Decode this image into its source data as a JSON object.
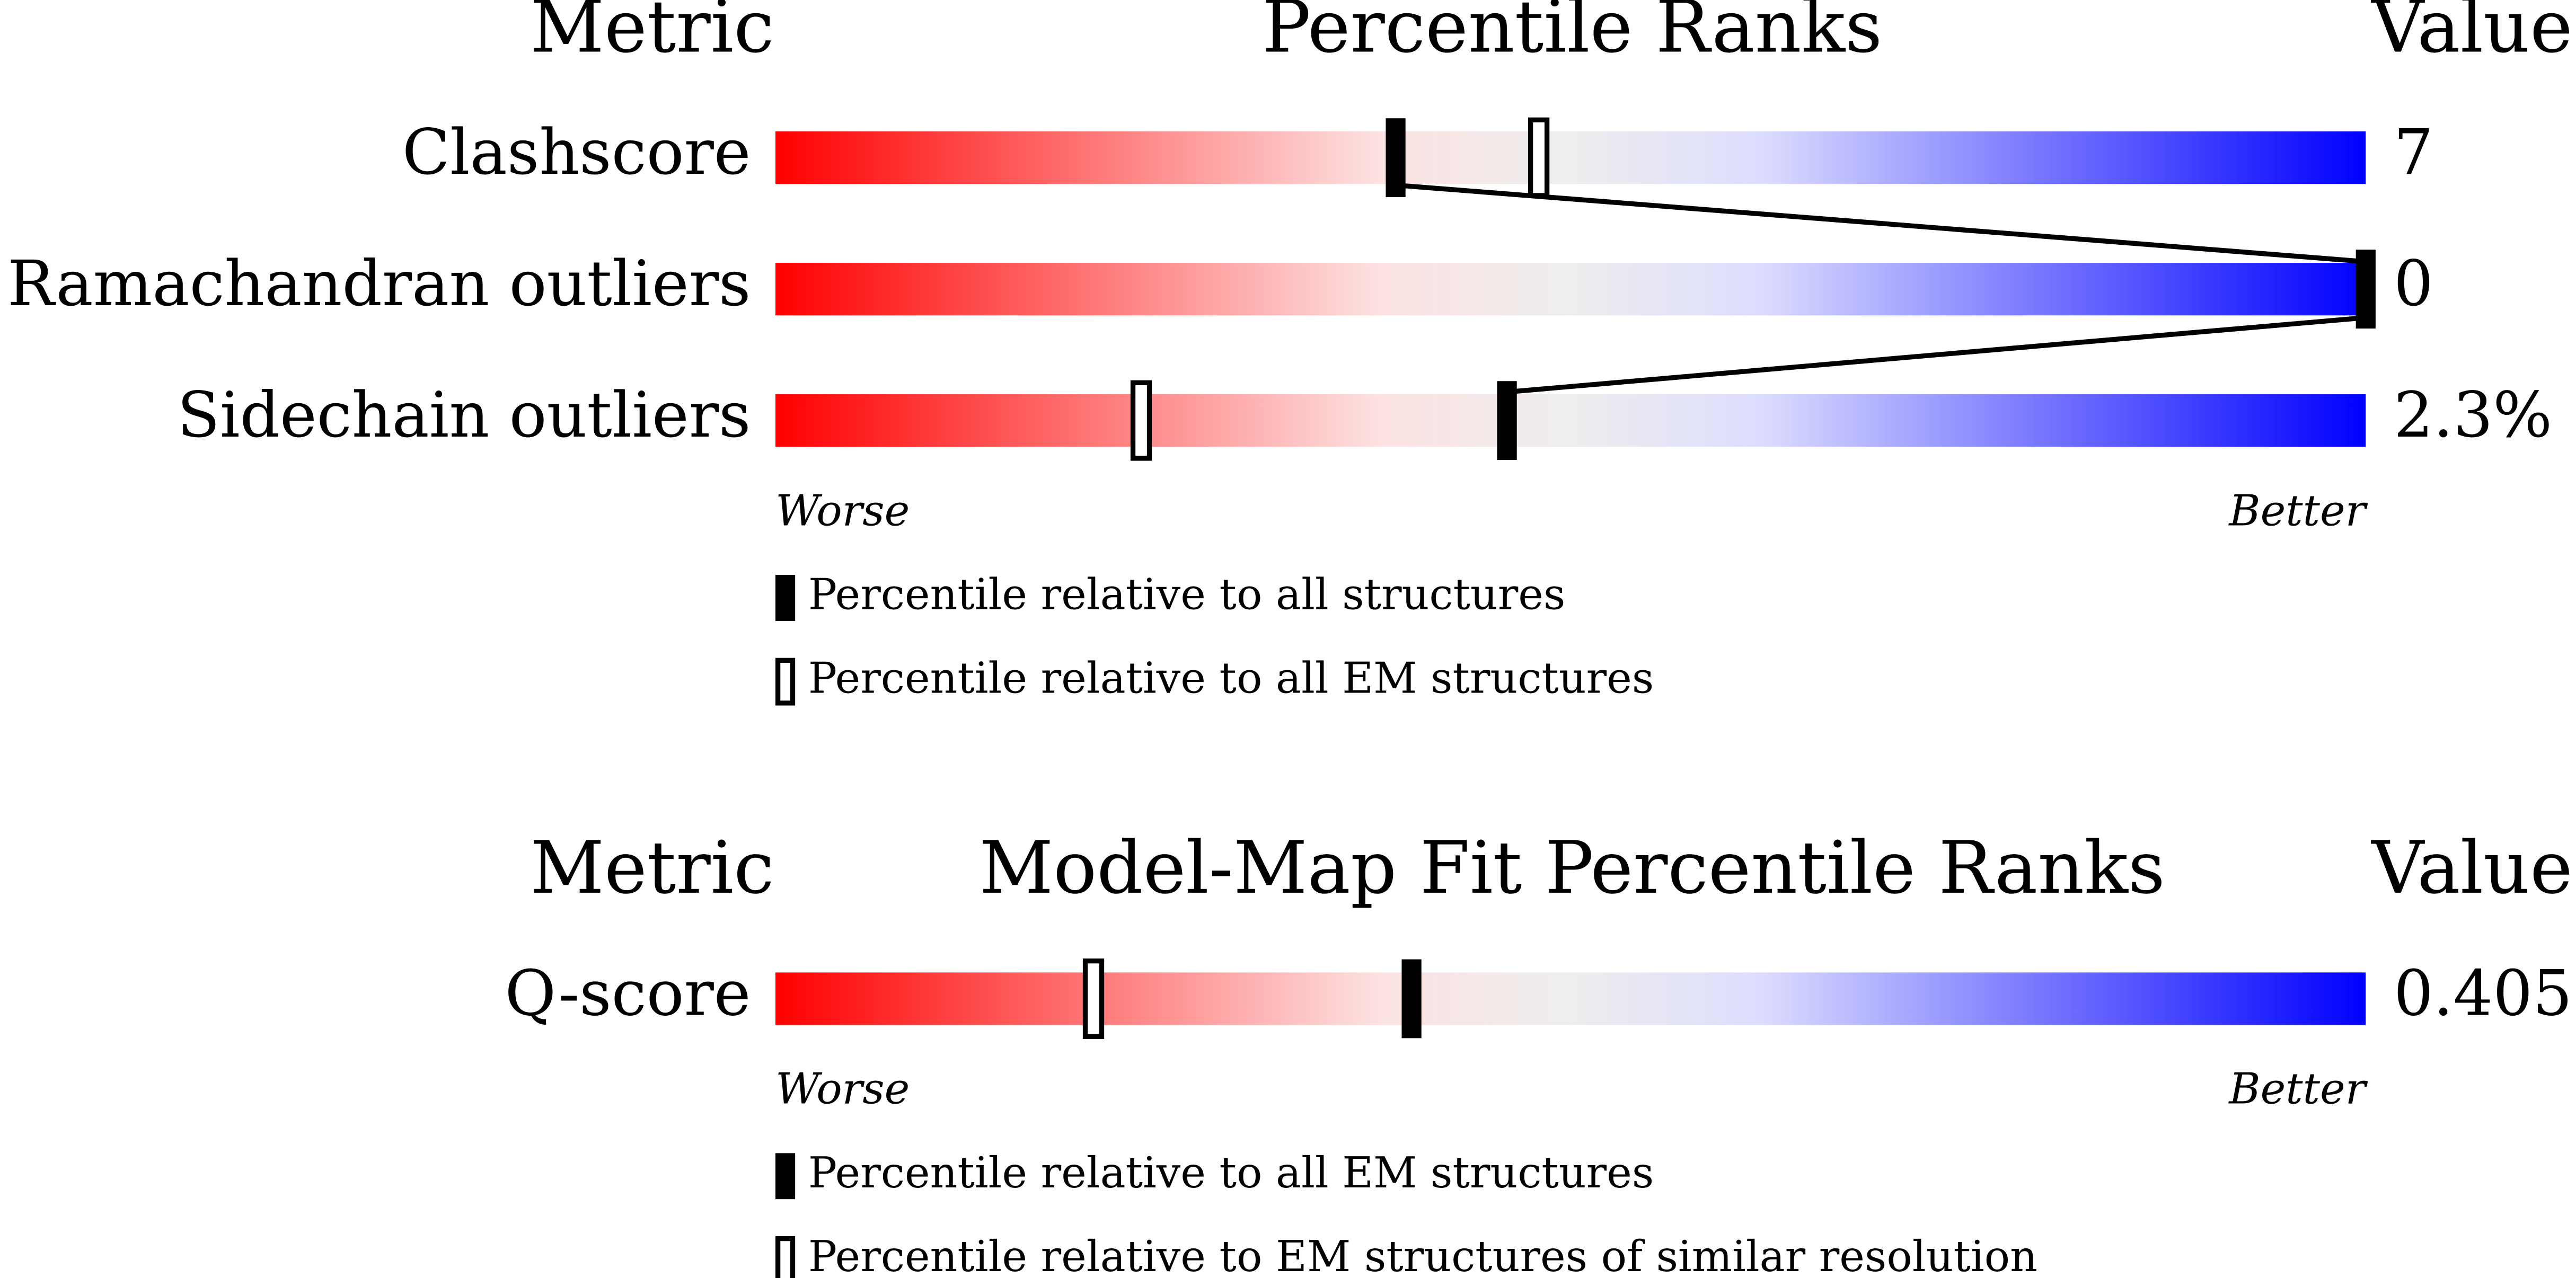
{
  "chart_data": [
    {
      "type": "percentile-slider",
      "metric_header": "Metric",
      "title": "Percentile Ranks",
      "value_header": "Value",
      "xlim": [
        0,
        100
      ],
      "categories": [
        "Clashscore",
        "Ramachandran outliers",
        "Sidechain outliers"
      ],
      "value_texts": [
        "7",
        "0",
        "2.3%"
      ],
      "series": [
        {
          "name": "Percentile relative to all structures",
          "style": "filled",
          "color": "#000000",
          "values": [
            39,
            100,
            46
          ]
        },
        {
          "name": "Percentile relative to all EM structures",
          "style": "open",
          "color": "#000000",
          "values": [
            48,
            null,
            23
          ]
        }
      ],
      "connect": true,
      "worse": "Worse",
      "better": "Better"
    },
    {
      "type": "percentile-slider",
      "metric_header": "Metric",
      "title": "Model-Map Fit Percentile Ranks",
      "value_header": "Value",
      "xlim": [
        0,
        100
      ],
      "categories": [
        "Q-score"
      ],
      "value_texts": [
        "0.405"
      ],
      "series": [
        {
          "name": "Percentile relative to all EM structures",
          "style": "filled",
          "color": "#000000",
          "values": [
            40
          ]
        },
        {
          "name": "Percentile relative to EM structures of similar resolution",
          "style": "open",
          "color": "#000000",
          "values": [
            20
          ]
        }
      ],
      "connect": false,
      "worse": "Worse",
      "better": "Better"
    }
  ]
}
